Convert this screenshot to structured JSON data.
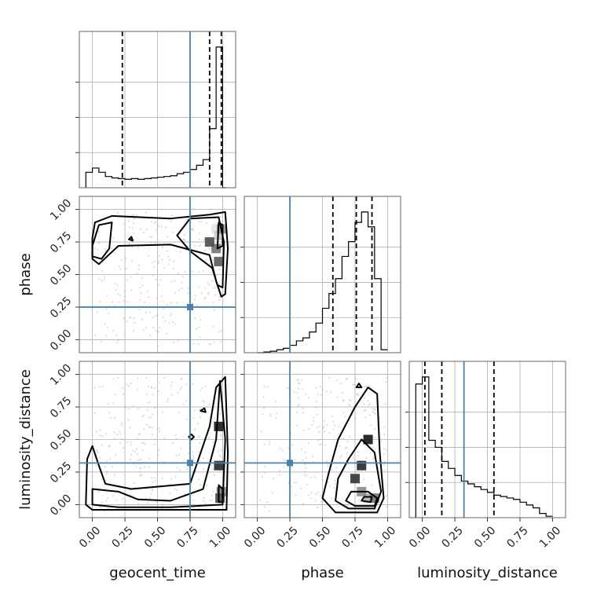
{
  "chart_data": {
    "type": "corner",
    "parameters": [
      "geocent_time",
      "phase",
      "luminosity_distance"
    ],
    "axis_labels": {
      "geocent_time": "geocent_time",
      "phase": "phase",
      "luminosity_distance": "luminosity_distance"
    },
    "ticks": [
      0.0,
      0.25,
      0.5,
      0.75,
      1.0
    ],
    "tick_labels": [
      "0.00",
      "0.25",
      "0.50",
      "0.75",
      "1.00"
    ],
    "axis_range": [
      -0.1,
      1.1
    ],
    "grid": true,
    "truth_color": "#4682b4",
    "truths": {
      "geocent_time": 0.75,
      "phase": 0.25,
      "luminosity_distance": 0.32
    },
    "quantile_lines": {
      "geocent_time": [
        0.23,
        0.9,
        0.99
      ],
      "phase": [
        0.58,
        0.76,
        0.88
      ],
      "luminosity_distance": [
        0.02,
        0.15,
        0.55
      ]
    },
    "histograms": {
      "geocent_time": {
        "edges": [
          -0.05,
          0.0,
          0.05,
          0.1,
          0.15,
          0.2,
          0.25,
          0.3,
          0.35,
          0.4,
          0.45,
          0.5,
          0.55,
          0.6,
          0.65,
          0.7,
          0.75,
          0.8,
          0.85,
          0.9,
          0.95,
          1.0,
          1.03
        ],
        "counts": [
          0.11,
          0.14,
          0.11,
          0.08,
          0.07,
          0.065,
          0.06,
          0.065,
          0.06,
          0.065,
          0.07,
          0.075,
          0.08,
          0.085,
          0.1,
          0.11,
          0.13,
          0.16,
          0.2,
          0.42,
          1.0,
          0.0
        ]
      },
      "phase": {
        "edges": [
          0.0,
          0.05,
          0.1,
          0.15,
          0.2,
          0.25,
          0.3,
          0.35,
          0.4,
          0.45,
          0.5,
          0.55,
          0.6,
          0.65,
          0.7,
          0.75,
          0.8,
          0.85,
          0.9,
          0.95,
          1.0
        ],
        "counts": [
          0.0,
          0.005,
          0.01,
          0.02,
          0.03,
          0.05,
          0.08,
          0.1,
          0.14,
          0.2,
          0.3,
          0.4,
          0.5,
          0.65,
          0.75,
          0.88,
          0.95,
          0.85,
          0.5,
          0.02
        ]
      },
      "luminosity_distance": {
        "edges": [
          -0.05,
          0.0,
          0.05,
          0.1,
          0.15,
          0.2,
          0.25,
          0.3,
          0.35,
          0.4,
          0.45,
          0.5,
          0.55,
          0.6,
          0.65,
          0.7,
          0.75,
          0.8,
          0.85,
          0.9,
          0.95,
          1.0
        ],
        "counts": [
          0.95,
          1.0,
          0.55,
          0.5,
          0.4,
          0.35,
          0.3,
          0.26,
          0.24,
          0.22,
          0.2,
          0.18,
          0.16,
          0.15,
          0.14,
          0.13,
          0.11,
          0.09,
          0.07,
          0.03,
          0.01
        ]
      }
    },
    "panels_2d": [
      {
        "x": "geocent_time",
        "y": "phase",
        "density_cells": [
          [
            0.95,
            0.85,
            0.9
          ],
          [
            0.97,
            0.8,
            0.8
          ],
          [
            0.99,
            0.85,
            0.6
          ],
          [
            0.95,
            0.7,
            0.45
          ],
          [
            0.97,
            0.6,
            0.35
          ],
          [
            0.9,
            0.75,
            0.3
          ]
        ],
        "contours": [
          [
            [
              0.0,
              0.78
            ],
            [
              0.02,
              0.9
            ],
            [
              0.15,
              0.95
            ],
            [
              0.6,
              0.93
            ],
            [
              0.9,
              0.96
            ],
            [
              1.02,
              0.98
            ],
            [
              1.04,
              0.7
            ],
            [
              1.02,
              0.35
            ],
            [
              0.99,
              0.33
            ],
            [
              0.95,
              0.45
            ],
            [
              0.9,
              0.65
            ],
            [
              0.6,
              0.73
            ],
            [
              0.2,
              0.72
            ],
            [
              0.05,
              0.58
            ],
            [
              0.0,
              0.62
            ]
          ],
          [
            [
              0.0,
              0.72
            ],
            [
              0.05,
              0.88
            ],
            [
              0.15,
              0.9
            ],
            [
              0.13,
              0.7
            ],
            [
              0.07,
              0.62
            ],
            [
              0.0,
              0.64
            ]
          ],
          [
            [
              0.65,
              0.8
            ],
            [
              0.75,
              0.93
            ],
            [
              0.97,
              0.94
            ],
            [
              1.01,
              0.75
            ],
            [
              1.0,
              0.4
            ],
            [
              0.96,
              0.42
            ],
            [
              0.92,
              0.55
            ],
            [
              0.75,
              0.68
            ]
          ],
          [
            [
              0.96,
              0.7
            ],
            [
              0.97,
              0.9
            ],
            [
              1.0,
              0.88
            ],
            [
              1.0,
              0.72
            ]
          ],
          [
            [
              0.28,
              0.77
            ],
            [
              0.3,
              0.79
            ],
            [
              0.31,
              0.76
            ]
          ]
        ]
      },
      {
        "x": "geocent_time",
        "y": "luminosity_distance",
        "density_cells": [
          [
            0.99,
            0.1,
            0.5
          ],
          [
            0.98,
            0.05,
            0.3
          ],
          [
            0.97,
            0.3,
            0.15
          ],
          [
            0.97,
            0.6,
            0.1
          ]
        ],
        "contours": [
          [
            [
              -0.05,
              0.0
            ],
            [
              -0.04,
              0.35
            ],
            [
              0.0,
              0.45
            ],
            [
              0.05,
              0.3
            ],
            [
              0.1,
              0.16
            ],
            [
              0.3,
              0.12
            ],
            [
              0.75,
              0.16
            ],
            [
              0.9,
              0.6
            ],
            [
              0.95,
              0.9
            ],
            [
              1.02,
              0.98
            ],
            [
              1.04,
              0.4
            ],
            [
              1.03,
              -0.04
            ],
            [
              0.5,
              -0.04
            ],
            [
              0.0,
              -0.04
            ]
          ],
          [
            [
              0.0,
              0.0
            ],
            [
              0.0,
              0.12
            ],
            [
              0.2,
              0.1
            ],
            [
              0.35,
              0.04
            ],
            [
              0.6,
              0.03
            ],
            [
              0.85,
              0.12
            ],
            [
              0.95,
              0.5
            ],
            [
              0.98,
              0.95
            ],
            [
              1.02,
              0.5
            ],
            [
              1.0,
              0.0
            ],
            [
              0.6,
              -0.02
            ],
            [
              0.2,
              -0.02
            ]
          ],
          [
            [
              0.97,
              0.02
            ],
            [
              0.97,
              0.15
            ],
            [
              1.0,
              0.12
            ],
            [
              1.0,
              0.02
            ]
          ],
          [
            [
              0.74,
              0.52
            ],
            [
              0.76,
              0.54
            ],
            [
              0.78,
              0.52
            ],
            [
              0.76,
              0.5
            ]
          ],
          [
            [
              0.83,
              0.72
            ],
            [
              0.86,
              0.74
            ],
            [
              0.87,
              0.71
            ]
          ]
        ]
      },
      {
        "x": "phase",
        "y": "luminosity_distance",
        "density_cells": [
          [
            0.85,
            0.05,
            0.7
          ],
          [
            0.9,
            0.05,
            0.45
          ],
          [
            0.8,
            0.1,
            0.55
          ],
          [
            0.75,
            0.2,
            0.2
          ],
          [
            0.8,
            0.3,
            0.15
          ],
          [
            0.85,
            0.5,
            0.08
          ]
        ],
        "contours": [
          [
            [
              0.5,
              0.05
            ],
            [
              0.55,
              0.25
            ],
            [
              0.62,
              0.5
            ],
            [
              0.75,
              0.75
            ],
            [
              0.85,
              0.9
            ],
            [
              0.92,
              0.85
            ],
            [
              0.94,
              0.4
            ],
            [
              0.97,
              0.05
            ],
            [
              0.92,
              -0.06
            ],
            [
              0.6,
              -0.06
            ]
          ],
          [
            [
              0.6,
              0.03
            ],
            [
              0.62,
              0.2
            ],
            [
              0.7,
              0.35
            ],
            [
              0.8,
              0.5
            ],
            [
              0.9,
              0.4
            ],
            [
              0.95,
              0.1
            ],
            [
              0.9,
              -0.03
            ],
            [
              0.7,
              -0.03
            ]
          ],
          [
            [
              0.68,
              0.03
            ],
            [
              0.72,
              0.1
            ],
            [
              0.85,
              0.1
            ],
            [
              0.92,
              0.05
            ],
            [
              0.9,
              -0.01
            ],
            [
              0.75,
              -0.01
            ]
          ],
          [
            [
              0.8,
              0.03
            ],
            [
              0.82,
              0.06
            ],
            [
              0.88,
              0.06
            ],
            [
              0.87,
              0.02
            ]
          ],
          [
            [
              0.76,
              0.9
            ],
            [
              0.78,
              0.93
            ],
            [
              0.8,
              0.9
            ]
          ]
        ]
      }
    ]
  }
}
